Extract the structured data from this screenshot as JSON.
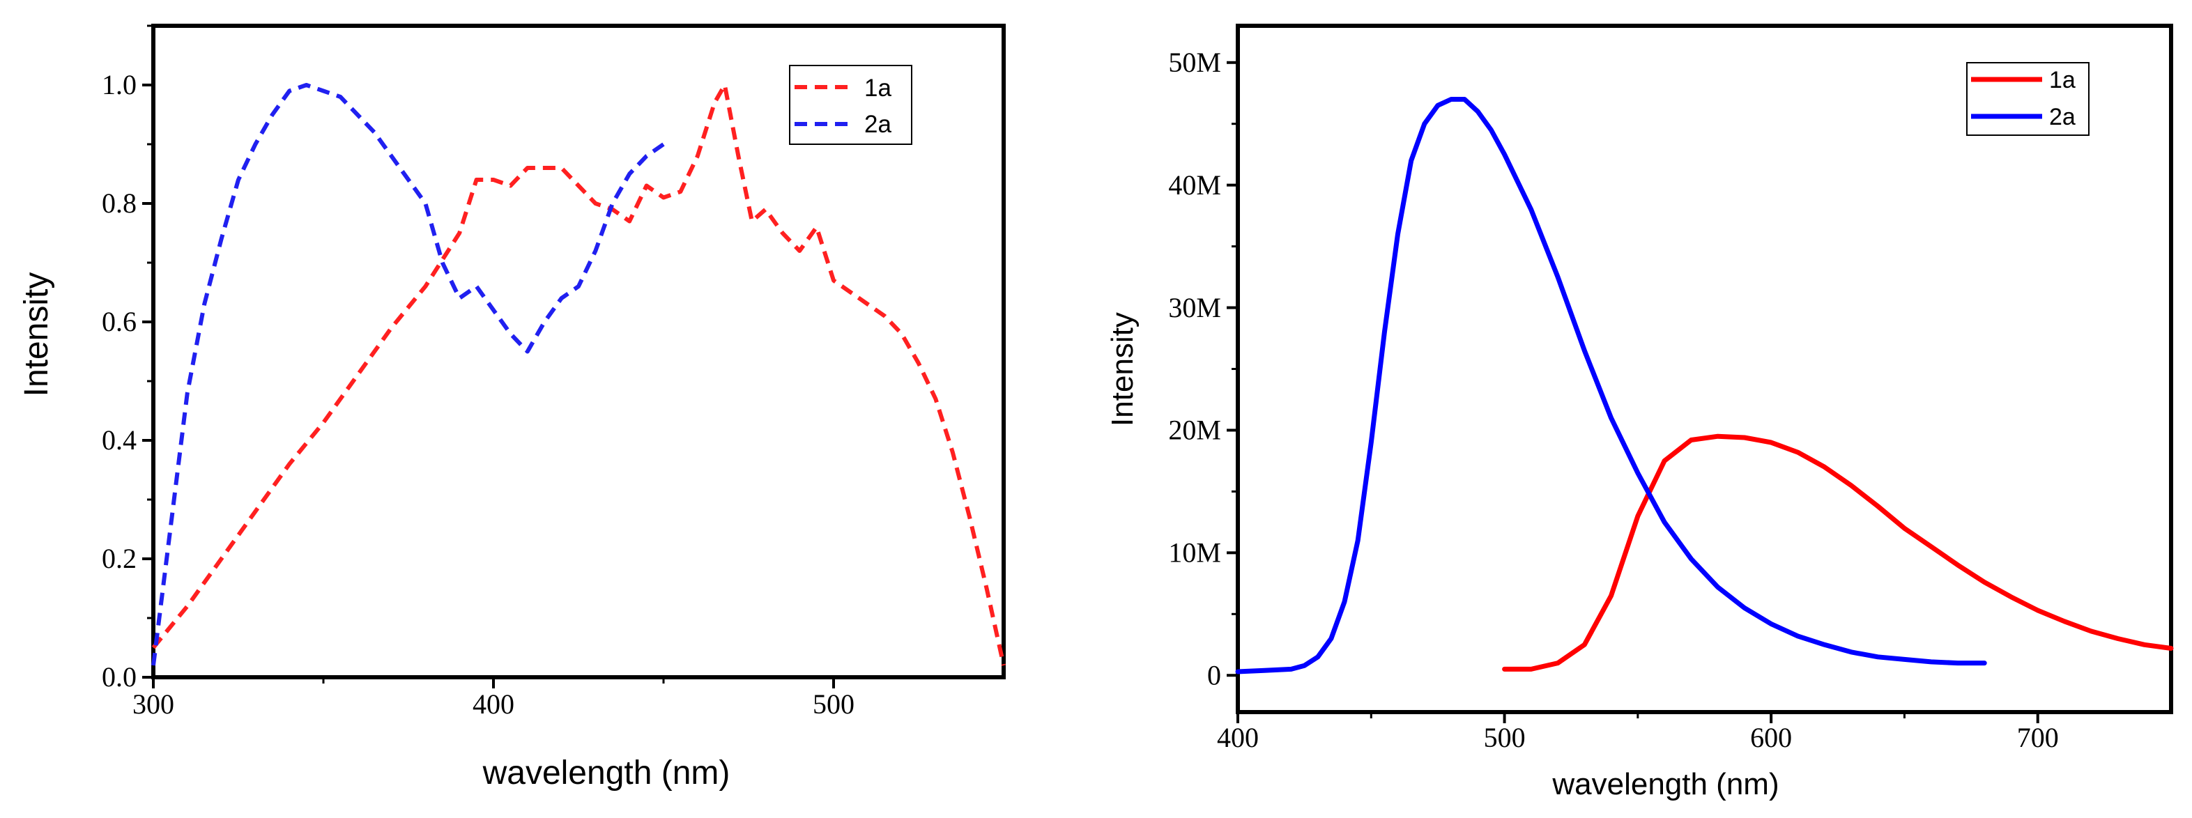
{
  "chart_data": [
    {
      "type": "line",
      "title": "",
      "xlabel": "wavelength (nm)",
      "ylabel": "Intensity",
      "xlim": [
        300,
        550
      ],
      "ylim": [
        0.0,
        1.1
      ],
      "xticks": [
        300,
        400,
        500
      ],
      "xtick_labels": [
        "300",
        "400",
        "500"
      ],
      "yticks": [
        0.0,
        0.2,
        0.4,
        0.6,
        0.8,
        1.0
      ],
      "ytick_labels": [
        "0.0",
        "0.2",
        "0.4",
        "0.6",
        "0.8",
        "1.0"
      ],
      "line_style": "dashed",
      "legend_position": "top-right",
      "series": [
        {
          "name": "1a",
          "color": "#ff2020",
          "x": [
            300,
            310,
            320,
            330,
            340,
            350,
            360,
            370,
            380,
            390,
            395,
            400,
            405,
            410,
            415,
            420,
            425,
            430,
            435,
            440,
            445,
            450,
            455,
            460,
            465,
            468,
            472,
            476,
            480,
            485,
            490,
            495,
            500,
            505,
            510,
            515,
            520,
            525,
            530,
            535,
            540,
            545,
            550
          ],
          "y": [
            0.05,
            0.12,
            0.2,
            0.28,
            0.36,
            0.43,
            0.51,
            0.59,
            0.66,
            0.75,
            0.84,
            0.84,
            0.83,
            0.86,
            0.86,
            0.86,
            0.83,
            0.8,
            0.79,
            0.77,
            0.83,
            0.81,
            0.82,
            0.88,
            0.97,
            1.0,
            0.88,
            0.77,
            0.79,
            0.75,
            0.72,
            0.76,
            0.67,
            0.65,
            0.63,
            0.61,
            0.58,
            0.53,
            0.47,
            0.38,
            0.27,
            0.15,
            0.02
          ]
        },
        {
          "name": "2a",
          "color": "#2020f0",
          "x": [
            300,
            305,
            310,
            315,
            320,
            325,
            330,
            335,
            340,
            345,
            350,
            355,
            360,
            365,
            370,
            375,
            380,
            385,
            390,
            395,
            400,
            405,
            410,
            415,
            420,
            425,
            430,
            435,
            440,
            445,
            450
          ],
          "y": [
            0.02,
            0.25,
            0.48,
            0.63,
            0.74,
            0.84,
            0.9,
            0.95,
            0.99,
            1.0,
            0.99,
            0.98,
            0.95,
            0.92,
            0.88,
            0.84,
            0.8,
            0.7,
            0.64,
            0.66,
            0.62,
            0.58,
            0.55,
            0.6,
            0.64,
            0.66,
            0.72,
            0.8,
            0.85,
            0.88,
            0.9
          ]
        }
      ]
    },
    {
      "type": "line",
      "title": "",
      "xlabel": "wavelength (nm)",
      "ylabel": "Intensity",
      "xlim": [
        400,
        750
      ],
      "ylim": [
        -3,
        53
      ],
      "y_units": "M",
      "xticks": [
        400,
        500,
        600,
        700
      ],
      "xtick_labels": [
        "400",
        "500",
        "600",
        "700"
      ],
      "yticks": [
        0,
        10,
        20,
        30,
        40,
        50
      ],
      "ytick_labels": [
        "0",
        "10M",
        "20M",
        "30M",
        "40M",
        "50M"
      ],
      "line_style": "solid",
      "legend_position": "top-right",
      "series": [
        {
          "name": "1a",
          "color": "#ff0000",
          "x": [
            500,
            510,
            520,
            530,
            540,
            550,
            560,
            570,
            580,
            590,
            600,
            610,
            620,
            630,
            640,
            650,
            660,
            670,
            680,
            690,
            700,
            710,
            720,
            730,
            740,
            750
          ],
          "y": [
            0.5,
            0.5,
            1.0,
            2.5,
            6.5,
            13.0,
            17.5,
            19.2,
            19.5,
            19.4,
            19.0,
            18.2,
            17.0,
            15.5,
            13.8,
            12.0,
            10.5,
            9.0,
            7.6,
            6.4,
            5.3,
            4.4,
            3.6,
            3.0,
            2.5,
            2.2
          ]
        },
        {
          "name": "2a",
          "color": "#0000ff",
          "x": [
            400,
            410,
            420,
            425,
            430,
            435,
            440,
            445,
            450,
            455,
            460,
            465,
            470,
            475,
            480,
            485,
            490,
            495,
            500,
            510,
            520,
            530,
            540,
            550,
            560,
            570,
            580,
            590,
            600,
            610,
            620,
            630,
            640,
            650,
            660,
            670,
            680
          ],
          "y": [
            0.3,
            0.4,
            0.5,
            0.8,
            1.5,
            3.0,
            6.0,
            11.0,
            19.0,
            28.0,
            36.0,
            42.0,
            45.0,
            46.5,
            47.0,
            47.0,
            46.0,
            44.5,
            42.5,
            38.0,
            32.5,
            26.5,
            21.0,
            16.5,
            12.5,
            9.5,
            7.2,
            5.5,
            4.2,
            3.2,
            2.5,
            1.9,
            1.5,
            1.3,
            1.1,
            1.0,
            1.0
          ]
        }
      ]
    }
  ]
}
